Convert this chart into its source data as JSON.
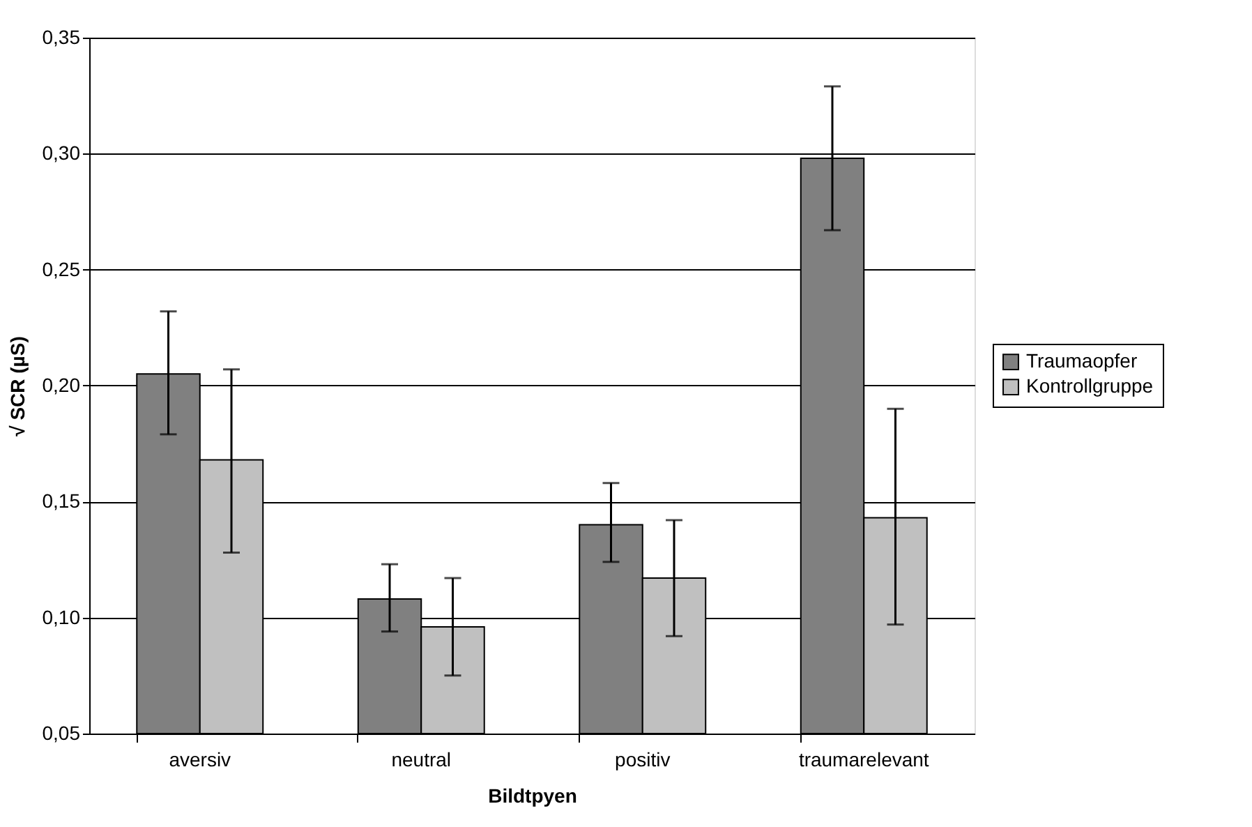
{
  "chart_data": {
    "type": "bar",
    "xlabel": "Bildtpyen",
    "ylabel": "√ SCR (µS)",
    "categories": [
      "aversiv",
      "neutral",
      "positiv",
      "traumarelevant"
    ],
    "series": [
      {
        "name": "Traumaopfer",
        "color": "#808080",
        "values": [
          0.205,
          0.108,
          0.14,
          0.298
        ],
        "errors": [
          [
            0.179,
            0.232
          ],
          [
            0.094,
            0.123
          ],
          [
            0.124,
            0.158
          ],
          [
            0.267,
            0.329
          ]
        ]
      },
      {
        "name": "Kontrollgruppe",
        "color": "#c0c0c0",
        "values": [
          0.168,
          0.096,
          0.117,
          0.143
        ],
        "errors": [
          [
            0.128,
            0.207
          ],
          [
            0.075,
            0.117
          ],
          [
            0.092,
            0.142
          ],
          [
            0.097,
            0.19
          ]
        ]
      }
    ],
    "ylim": [
      0.05,
      0.35
    ],
    "yticks": [
      {
        "value": 0.05,
        "label": "0,05"
      },
      {
        "value": 0.1,
        "label": "0,10"
      },
      {
        "value": 0.15,
        "label": "0,15"
      },
      {
        "value": 0.2,
        "label": "0,20"
      },
      {
        "value": 0.25,
        "label": "0,25"
      },
      {
        "value": 0.3,
        "label": "0,30"
      },
      {
        "value": 0.35,
        "label": "0,35"
      }
    ],
    "grid": "y",
    "legend": "right"
  }
}
